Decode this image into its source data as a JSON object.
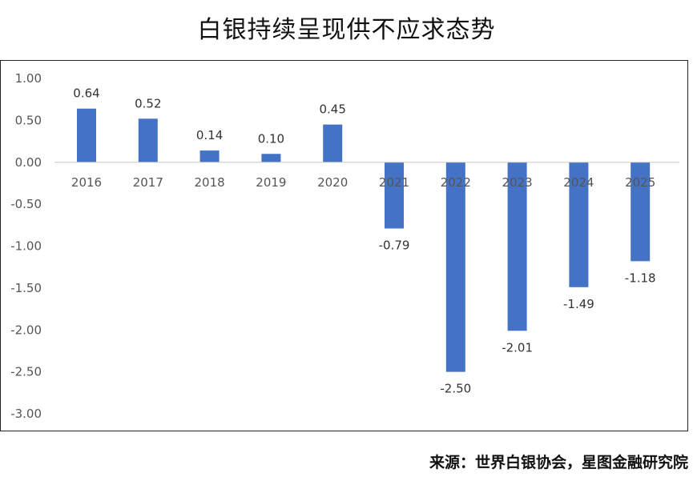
{
  "title": "白银持续呈现供不应求态势",
  "source": "来源：世界白银协会，星图金融研究院",
  "chart_data": {
    "type": "bar",
    "title": "白银持续呈现供不应求态势",
    "categories": [
      "2016",
      "2017",
      "2018",
      "2019",
      "2020",
      "2021",
      "2022",
      "2023",
      "2024",
      "2025"
    ],
    "values": [
      0.64,
      0.52,
      0.14,
      0.1,
      0.45,
      -0.79,
      -2.5,
      -2.01,
      -1.49,
      -1.18
    ],
    "value_labels": [
      "0.64",
      "0.52",
      "0.14",
      "0.10",
      "0.45",
      "-0.79",
      "-2.50",
      "-2.01",
      "-1.49",
      "-1.18"
    ],
    "yticks": [
      "1.00",
      "0.50",
      "0.00",
      "-0.50",
      "-1.00",
      "-1.50",
      "-2.00",
      "-2.50",
      "-3.00"
    ],
    "ylim": [
      -3.0,
      1.0
    ],
    "grid": false,
    "legend": "none",
    "bar_color": "#4472C4"
  }
}
